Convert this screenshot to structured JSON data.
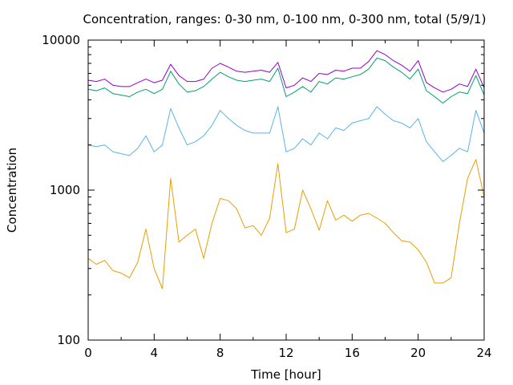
{
  "chart_data": {
    "type": "line",
    "title": "Concentration, ranges: 0-30 nm, 0-100 nm, 0-300 nm, total (5/9/1)",
    "xlabel": "Time [hour]",
    "ylabel": "Concentration",
    "xlim": [
      0,
      24
    ],
    "ylim": [
      100,
      10000
    ],
    "yscale": "log",
    "grid": false,
    "legend": "none",
    "x_ticks": [
      0,
      4,
      8,
      12,
      16,
      20,
      24
    ],
    "y_ticks": [
      100,
      1000,
      10000
    ],
    "x_tick_labels": [
      "0",
      "4",
      "8",
      "12",
      "16",
      "20",
      "24"
    ],
    "y_tick_labels": [
      "100",
      "1000",
      "10000"
    ],
    "x": [
      0,
      0.5,
      1,
      1.5,
      2,
      2.5,
      3,
      3.5,
      4,
      4.5,
      5,
      5.5,
      6,
      6.5,
      7,
      7.5,
      8,
      8.5,
      9,
      9.5,
      10,
      10.5,
      11,
      11.5,
      12,
      12.5,
      13,
      13.5,
      14,
      14.5,
      15,
      15.5,
      16,
      16.5,
      17,
      17.5,
      18,
      18.5,
      19,
      19.5,
      20,
      20.5,
      21,
      21.5,
      22,
      22.5,
      23,
      23.5,
      24
    ],
    "series": [
      {
        "color": "#9400d3",
        "values": [
          5400,
          5300,
          5500,
          5000,
          4900,
          4900,
          5200,
          5500,
          5200,
          5400,
          6900,
          5800,
          5300,
          5300,
          5500,
          6500,
          7000,
          6600,
          6200,
          6100,
          6200,
          6300,
          6100,
          7100,
          4800,
          5000,
          5600,
          5300,
          6000,
          5900,
          6300,
          6200,
          6500,
          6500,
          7200,
          8500,
          8000,
          7300,
          6800,
          6200,
          7300,
          5200,
          4800,
          4500,
          4700,
          5100,
          4900,
          6400,
          4800
        ]
      },
      {
        "color": "#009e73",
        "values": [
          4700,
          4600,
          4800,
          4400,
          4300,
          4200,
          4500,
          4700,
          4400,
          4700,
          6200,
          5100,
          4500,
          4600,
          4900,
          5500,
          6100,
          5700,
          5400,
          5300,
          5400,
          5500,
          5300,
          6500,
          4200,
          4500,
          4900,
          4500,
          5300,
          5100,
          5600,
          5500,
          5700,
          5900,
          6400,
          7600,
          7300,
          6600,
          6100,
          5500,
          6400,
          4600,
          4200,
          3800,
          4200,
          4500,
          4400,
          5800,
          4300
        ]
      },
      {
        "color": "#56b4e9",
        "values": [
          2000,
          1950,
          2000,
          1800,
          1750,
          1700,
          1900,
          2300,
          1800,
          2000,
          3500,
          2600,
          2000,
          2100,
          2300,
          2700,
          3400,
          3000,
          2700,
          2500,
          2400,
          2400,
          2400,
          3600,
          1800,
          1900,
          2200,
          2000,
          2400,
          2200,
          2600,
          2500,
          2800,
          2900,
          3000,
          3600,
          3200,
          2900,
          2800,
          2600,
          3000,
          2100,
          1800,
          1550,
          1700,
          1900,
          1800,
          3400,
          2400
        ]
      },
      {
        "color": "#e69f00",
        "values": [
          350,
          320,
          340,
          290,
          280,
          260,
          330,
          550,
          300,
          220,
          1200,
          450,
          500,
          550,
          350,
          600,
          880,
          850,
          750,
          560,
          580,
          500,
          650,
          1500,
          520,
          550,
          1000,
          750,
          540,
          850,
          630,
          680,
          620,
          680,
          700,
          650,
          600,
          520,
          460,
          450,
          400,
          330,
          240,
          240,
          260,
          600,
          1200,
          1600,
          900
        ]
      }
    ]
  }
}
